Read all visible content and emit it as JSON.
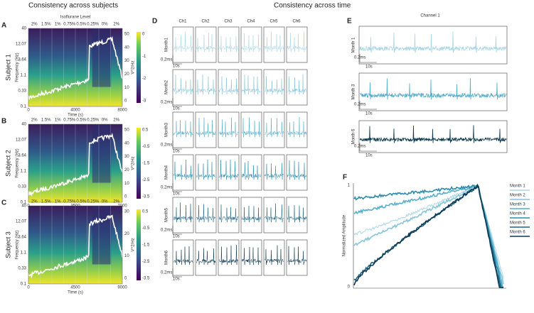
{
  "headings": {
    "left": "Consistency across subjects",
    "middle": "Consistency across time"
  },
  "spectro": {
    "top_label": "Isoflurane Level",
    "y_label": "Frequency (Hz)",
    "y_ticks": [
      "40",
      "12.07",
      "3.64",
      "1.1",
      "0.33",
      "0.1"
    ],
    "x_label": "Time (s)",
    "cbar_label": "V^2/Hz"
  },
  "subjects": [
    {
      "letter": "A",
      "name": "Subject 1",
      "levels": [
        "2%",
        "1.5%",
        "1%",
        "0.75%",
        "0.5%",
        "0.25%",
        "0%",
        "2%"
      ],
      "x_ticks": [
        "0",
        "4000",
        "8000"
      ],
      "cbar_ticks": [
        "0",
        "-1",
        "-2",
        "-3"
      ],
      "right_ticks": [
        "50",
        "40",
        "30",
        "20",
        "10",
        "0"
      ]
    },
    {
      "letter": "B",
      "name": "Subject 2",
      "levels": [
        "2%",
        "1.5%",
        "1%",
        "0.75%",
        "0.5%",
        "0.25%",
        "0%",
        "2%"
      ],
      "x_ticks": [
        "0",
        "3500",
        "7000"
      ],
      "cbar_ticks": [
        "0.5",
        "-0.5",
        "-1.5",
        "-2.5",
        "-3.5"
      ],
      "right_ticks": [
        "50",
        "40",
        "30",
        "20",
        "10",
        "0"
      ]
    },
    {
      "letter": "C",
      "name": "Subject 3",
      "levels": [
        "2%",
        "1.5%",
        "1%",
        "0.75%",
        "0.5%",
        "0.25%",
        "0%",
        "2%"
      ],
      "x_ticks": [
        "0",
        "4500",
        "9000"
      ],
      "cbar_ticks": [
        "0.5",
        "-0.5",
        "-1.5",
        "-2.5",
        "-3.5"
      ],
      "right_ticks": [
        "30",
        "20",
        "10",
        "0"
      ]
    }
  ],
  "panel_d": {
    "letter": "D",
    "channels": [
      "Ch1",
      "Ch2",
      "Ch3",
      "Ch4",
      "Ch5",
      "Ch6"
    ],
    "months": [
      "Month1",
      "Month2",
      "Month3",
      "Month4",
      "Month5",
      "Month6"
    ],
    "amp": "0.2ms",
    "time": "10s"
  },
  "panel_e": {
    "letter": "E",
    "title": "Channel 1",
    "months": [
      "Month 1",
      "Month 3",
      "Month 6"
    ],
    "amp": "0.2ms",
    "time": "10s"
  },
  "panel_f": {
    "letter": "F",
    "y_label": "Normalized Amplitude",
    "y_ticks": [
      "1",
      "0"
    ],
    "legend": [
      {
        "name": "Month 1",
        "color": "#a9d6e6"
      },
      {
        "name": "Month 2",
        "color": "#86c4db"
      },
      {
        "name": "Month 3",
        "color": "#55aecb"
      },
      {
        "name": "Month 4",
        "color": "#2b8cae"
      },
      {
        "name": "Month 5",
        "color": "#1c6485"
      },
      {
        "name": "Month 6",
        "color": "#0e3950"
      }
    ]
  }
}
